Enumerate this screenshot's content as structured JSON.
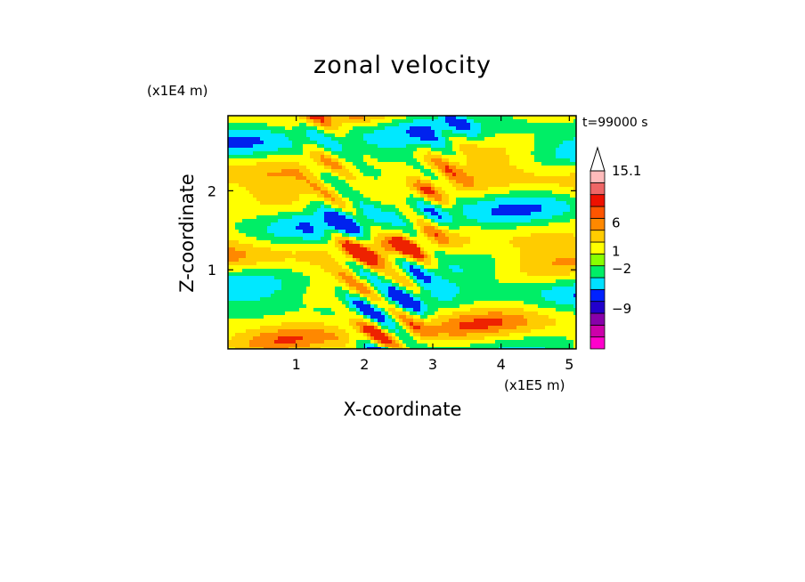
{
  "chart_data": {
    "type": "heatmap",
    "title": "zonal velocity",
    "xlabel": "X-coordinate",
    "ylabel": "Z-coordinate",
    "x_unit": "(x1E5 m)",
    "y_unit": "(x1E4 m)",
    "time_label": "t=99000 s",
    "xlim": [
      0,
      5.1
    ],
    "ylim": [
      0,
      2.95
    ],
    "x_ticks": [
      1,
      2,
      3,
      4,
      5
    ],
    "y_ticks": [
      1,
      2
    ],
    "colorbar": {
      "labels": [
        {
          "value": 15.1,
          "text": "15.1"
        },
        {
          "value": 6,
          "text": "6"
        },
        {
          "value": 1,
          "text": "1"
        },
        {
          "value": -2,
          "text": "−2"
        },
        {
          "value": -9,
          "text": "−9"
        }
      ],
      "colors": [
        "#ff00cc",
        "#cc00aa",
        "#8800aa",
        "#2200cc",
        "#0022ff",
        "#00e0ff",
        "#00ee66",
        "#88ff00",
        "#ffff00",
        "#ffcc00",
        "#ff8800",
        "#ff5500",
        "#ee1100",
        "#ee6666",
        "#ffbbbb",
        "#ffffff"
      ]
    },
    "field_description": "zonal velocity contours; positive (yellow/orange/red) and negative (cyan/blue) alternating wave bands over a V-shaped plume centred near x=2.3, z=0"
  }
}
